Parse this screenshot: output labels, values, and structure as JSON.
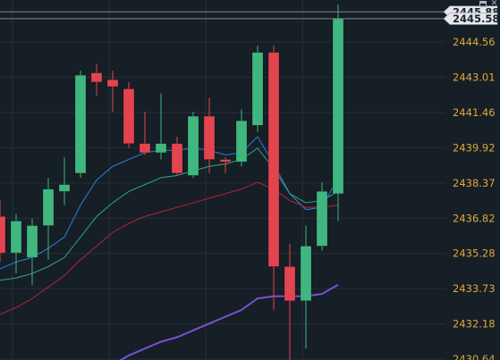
{
  "window_controls": {
    "restore_icon": "window-restore-icon",
    "close_icon": "close-icon",
    "close_glyph": "✕"
  },
  "colors": {
    "background": "#161e26",
    "grid": "#25303a",
    "axis_text": "#e0a83a",
    "up": "#3fb77f",
    "down": "#e2454f",
    "crosshair": "#7e8a94",
    "badge_bg": "#e6e8ea",
    "badge_text": "#1b232b",
    "ma_fast": "#2a79c9",
    "ma_mid": "#2c9c84",
    "ma_slow": "#a8242c",
    "ma_long": "#7a4fd6"
  },
  "chart_data": {
    "type": "candlestick",
    "y_axis": {
      "ticks": [
        "2444.56",
        "2443.01",
        "2441.46",
        "2439.92",
        "2438.37",
        "2436.82",
        "2435.28",
        "2433.73",
        "2432.18",
        "2430.64"
      ],
      "range": [
        2430.6,
        2446.4
      ]
    },
    "price_badges": [
      {
        "value": "2445.88",
        "role": "back"
      },
      {
        "value": "2445.58",
        "role": "front"
      }
    ],
    "candles": [
      {
        "o": 2435.3,
        "h": 2437.0,
        "l": 2434.9,
        "c": 2436.9
      },
      {
        "o": 2436.9,
        "h": 2437.6,
        "l": 2434.9,
        "c": 2435.3
      },
      {
        "o": 2435.3,
        "h": 2437.0,
        "l": 2434.4,
        "c": 2436.7
      },
      {
        "o": 2435.1,
        "h": 2436.8,
        "l": 2433.9,
        "c": 2436.5
      },
      {
        "o": 2436.5,
        "h": 2438.6,
        "l": 2435.0,
        "c": 2438.1
      },
      {
        "o": 2438.0,
        "h": 2439.5,
        "l": 2437.4,
        "c": 2438.3
      },
      {
        "o": 2438.8,
        "h": 2443.3,
        "l": 2438.6,
        "c": 2443.1
      },
      {
        "o": 2443.2,
        "h": 2443.6,
        "l": 2442.2,
        "c": 2442.8
      },
      {
        "o": 2442.9,
        "h": 2443.3,
        "l": 2441.5,
        "c": 2442.6
      },
      {
        "o": 2442.5,
        "h": 2442.8,
        "l": 2439.9,
        "c": 2440.1
      },
      {
        "o": 2440.1,
        "h": 2441.5,
        "l": 2439.6,
        "c": 2439.7
      },
      {
        "o": 2439.7,
        "h": 2442.3,
        "l": 2439.4,
        "c": 2440.1
      },
      {
        "o": 2440.1,
        "h": 2440.4,
        "l": 2438.7,
        "c": 2438.8
      },
      {
        "o": 2438.7,
        "h": 2441.5,
        "l": 2438.6,
        "c": 2441.3
      },
      {
        "o": 2441.3,
        "h": 2442.1,
        "l": 2438.8,
        "c": 2439.4
      },
      {
        "o": 2439.4,
        "h": 2439.5,
        "l": 2438.8,
        "c": 2439.3
      },
      {
        "o": 2439.3,
        "h": 2441.6,
        "l": 2439.1,
        "c": 2441.1
      },
      {
        "o": 2440.9,
        "h": 2444.4,
        "l": 2440.6,
        "c": 2444.1
      },
      {
        "o": 2444.1,
        "h": 2444.4,
        "l": 2432.8,
        "c": 2434.7
      },
      {
        "o": 2434.7,
        "h": 2435.7,
        "l": 2430.5,
        "c": 2433.2
      },
      {
        "o": 2433.2,
        "h": 2436.5,
        "l": 2431.1,
        "c": 2435.6
      },
      {
        "o": 2435.6,
        "h": 2438.4,
        "l": 2435.4,
        "c": 2438.0
      },
      {
        "o": 2437.9,
        "h": 2446.2,
        "l": 2436.7,
        "c": 2445.58
      }
    ],
    "moving_averages": [
      {
        "key": "ma_fast",
        "points": [
          2434.4,
          2434.6,
          2434.9,
          2435.1,
          2435.5,
          2436.0,
          2437.4,
          2438.5,
          2439.1,
          2439.4,
          2439.7,
          2439.8,
          2439.8,
          2439.9,
          2439.8,
          2439.6,
          2439.7,
          2440.4,
          2439.2,
          2437.9,
          2437.2,
          2437.3,
          2438.6
        ]
      },
      {
        "key": "ma_mid",
        "points": [
          2433.9,
          2434.1,
          2434.2,
          2434.4,
          2434.7,
          2435.1,
          2436.0,
          2436.9,
          2437.5,
          2438.0,
          2438.3,
          2438.6,
          2438.7,
          2438.9,
          2439.1,
          2439.2,
          2439.4,
          2439.9,
          2439.0,
          2437.9,
          2437.5,
          2437.6,
          2438.0
        ]
      },
      {
        "key": "ma_slow",
        "points": [
          2432.2,
          2432.6,
          2432.9,
          2433.3,
          2433.8,
          2434.3,
          2435.0,
          2435.6,
          2436.2,
          2436.6,
          2436.9,
          2437.1,
          2437.3,
          2437.5,
          2437.7,
          2437.9,
          2438.1,
          2438.4,
          2438.1,
          2437.6,
          2437.3,
          2437.3,
          2437.4
        ]
      },
      {
        "key": "ma_long",
        "points": [
          null,
          null,
          null,
          null,
          null,
          null,
          null,
          null,
          2430.4,
          2430.8,
          2431.1,
          2431.4,
          2431.6,
          2431.9,
          2432.2,
          2432.5,
          2432.8,
          2433.3,
          2433.4,
          2433.4,
          2433.4,
          2433.5,
          2433.9
        ]
      }
    ]
  }
}
